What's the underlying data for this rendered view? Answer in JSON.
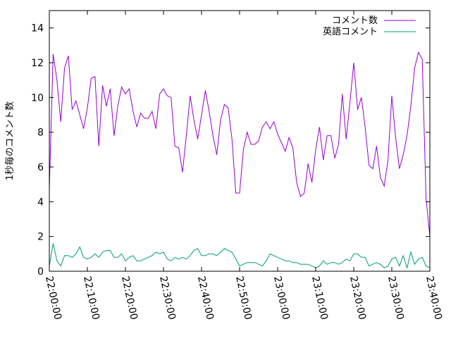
{
  "chart_data": {
    "type": "line",
    "title": "",
    "xlabel": "",
    "ylabel": "1秒毎のコメント数",
    "xlim": [
      "22:00:00",
      "23:40:00"
    ],
    "ylim": [
      0,
      15
    ],
    "yticks": [
      0,
      2,
      4,
      6,
      8,
      10,
      12,
      14
    ],
    "xticks": [
      "22:00:00",
      "22:10:00",
      "22:20:00",
      "22:30:00",
      "22:40:00",
      "22:50:00",
      "23:00:00",
      "23:10:00",
      "23:20:00",
      "23:30:00",
      "23:40:00"
    ],
    "grid": false,
    "legend_position": "top-right",
    "series": [
      {
        "name": "コメント数",
        "color": "#9400d3",
        "points": [
          [
            "22:00:00",
            4.7
          ],
          [
            "22:01:00",
            12.5
          ],
          [
            "22:02:00",
            11.0
          ],
          [
            "22:03:00",
            8.6
          ],
          [
            "22:04:00",
            11.7
          ],
          [
            "22:05:00",
            12.4
          ],
          [
            "22:06:00",
            9.3
          ],
          [
            "22:07:00",
            9.8
          ],
          [
            "22:08:00",
            9.0
          ],
          [
            "22:09:00",
            8.2
          ],
          [
            "22:10:00",
            9.4
          ],
          [
            "22:11:00",
            11.1
          ],
          [
            "22:12:00",
            11.2
          ],
          [
            "22:13:00",
            7.2
          ],
          [
            "22:14:00",
            10.7
          ],
          [
            "22:15:00",
            9.5
          ],
          [
            "22:16:00",
            10.5
          ],
          [
            "22:17:00",
            7.8
          ],
          [
            "22:18:00",
            9.5
          ],
          [
            "22:19:00",
            10.6
          ],
          [
            "22:20:00",
            10.2
          ],
          [
            "22:21:00",
            10.5
          ],
          [
            "22:22:00",
            9.2
          ],
          [
            "22:23:00",
            8.3
          ],
          [
            "22:24:00",
            9.1
          ],
          [
            "22:25:00",
            8.8
          ],
          [
            "22:26:00",
            8.8
          ],
          [
            "22:27:00",
            9.2
          ],
          [
            "22:28:00",
            8.2
          ],
          [
            "22:29:00",
            10.2
          ],
          [
            "22:30:00",
            10.5
          ],
          [
            "22:31:00",
            10.1
          ],
          [
            "22:32:00",
            10.0
          ],
          [
            "22:33:00",
            7.2
          ],
          [
            "22:34:00",
            7.1
          ],
          [
            "22:35:00",
            5.7
          ],
          [
            "22:36:00",
            7.8
          ],
          [
            "22:37:00",
            10.1
          ],
          [
            "22:38:00",
            8.7
          ],
          [
            "22:39:00",
            7.6
          ],
          [
            "22:40:00",
            9.0
          ],
          [
            "22:41:00",
            10.4
          ],
          [
            "22:42:00",
            9.2
          ],
          [
            "22:43:00",
            7.8
          ],
          [
            "22:44:00",
            6.7
          ],
          [
            "22:45:00",
            8.7
          ],
          [
            "22:46:00",
            9.6
          ],
          [
            "22:47:00",
            9.4
          ],
          [
            "22:48:00",
            7.6
          ],
          [
            "22:49:00",
            4.5
          ],
          [
            "22:50:00",
            4.5
          ],
          [
            "22:51:00",
            7.0
          ],
          [
            "22:52:00",
            8.0
          ],
          [
            "22:53:00",
            7.3
          ],
          [
            "22:54:00",
            7.3
          ],
          [
            "22:55:00",
            7.5
          ],
          [
            "22:56:00",
            8.3
          ],
          [
            "22:57:00",
            8.6
          ],
          [
            "22:58:00",
            8.2
          ],
          [
            "22:59:00",
            8.6
          ],
          [
            "23:00:00",
            7.9
          ],
          [
            "23:01:00",
            7.4
          ],
          [
            "23:02:00",
            6.9
          ],
          [
            "23:03:00",
            7.7
          ],
          [
            "23:04:00",
            7.1
          ],
          [
            "23:05:00",
            5.1
          ],
          [
            "23:06:00",
            4.3
          ],
          [
            "23:07:00",
            4.5
          ],
          [
            "23:08:00",
            6.2
          ],
          [
            "23:09:00",
            5.1
          ],
          [
            "23:10:00",
            7.0
          ],
          [
            "23:11:00",
            8.3
          ],
          [
            "23:12:00",
            6.4
          ],
          [
            "23:13:00",
            7.8
          ],
          [
            "23:14:00",
            7.8
          ],
          [
            "23:15:00",
            6.5
          ],
          [
            "23:16:00",
            7.3
          ],
          [
            "23:17:00",
            10.2
          ],
          [
            "23:18:00",
            7.6
          ],
          [
            "23:19:00",
            9.7
          ],
          [
            "23:20:00",
            12.0
          ],
          [
            "23:21:00",
            9.3
          ],
          [
            "23:22:00",
            10.0
          ],
          [
            "23:23:00",
            8.3
          ],
          [
            "23:24:00",
            6.1
          ],
          [
            "23:25:00",
            5.9
          ],
          [
            "23:26:00",
            7.2
          ],
          [
            "23:27:00",
            5.4
          ],
          [
            "23:28:00",
            4.9
          ],
          [
            "23:29:00",
            6.4
          ],
          [
            "23:30:00",
            10.1
          ],
          [
            "23:31:00",
            7.7
          ],
          [
            "23:32:00",
            5.9
          ],
          [
            "23:33:00",
            6.7
          ],
          [
            "23:34:00",
            7.8
          ],
          [
            "23:35:00",
            9.5
          ],
          [
            "23:36:00",
            11.7
          ],
          [
            "23:37:00",
            12.6
          ],
          [
            "23:38:00",
            12.2
          ],
          [
            "23:39:00",
            4.2
          ],
          [
            "23:40:00",
            2.0
          ]
        ]
      },
      {
        "name": "英語コメント",
        "color": "#009e73",
        "points": [
          [
            "22:00:00",
            0.3
          ],
          [
            "22:01:00",
            1.6
          ],
          [
            "22:02:00",
            0.6
          ],
          [
            "22:03:00",
            0.3
          ],
          [
            "22:04:00",
            0.9
          ],
          [
            "22:05:00",
            0.9
          ],
          [
            "22:06:00",
            0.8
          ],
          [
            "22:07:00",
            1.0
          ],
          [
            "22:08:00",
            1.4
          ],
          [
            "22:09:00",
            0.8
          ],
          [
            "22:10:00",
            0.7
          ],
          [
            "22:11:00",
            0.8
          ],
          [
            "22:12:00",
            1.0
          ],
          [
            "22:13:00",
            0.8
          ],
          [
            "22:14:00",
            1.1
          ],
          [
            "22:15:00",
            1.2
          ],
          [
            "22:16:00",
            1.2
          ],
          [
            "22:17:00",
            0.8
          ],
          [
            "22:18:00",
            0.8
          ],
          [
            "22:19:00",
            1.0
          ],
          [
            "22:20:00",
            0.6
          ],
          [
            "22:21:00",
            0.8
          ],
          [
            "22:22:00",
            0.9
          ],
          [
            "22:23:00",
            0.6
          ],
          [
            "22:24:00",
            0.6
          ],
          [
            "22:25:00",
            0.7
          ],
          [
            "22:26:00",
            0.8
          ],
          [
            "22:27:00",
            0.9
          ],
          [
            "22:28:00",
            1.1
          ],
          [
            "22:29:00",
            1.0
          ],
          [
            "22:30:00",
            1.1
          ],
          [
            "22:31:00",
            0.7
          ],
          [
            "22:32:00",
            0.6
          ],
          [
            "22:33:00",
            0.8
          ],
          [
            "22:34:00",
            0.7
          ],
          [
            "22:35:00",
            0.8
          ],
          [
            "22:36:00",
            0.7
          ],
          [
            "22:37:00",
            0.9
          ],
          [
            "22:38:00",
            1.2
          ],
          [
            "22:39:00",
            1.3
          ],
          [
            "22:40:00",
            0.9
          ],
          [
            "22:41:00",
            0.9
          ],
          [
            "22:42:00",
            1.0
          ],
          [
            "22:43:00",
            1.0
          ],
          [
            "22:44:00",
            0.9
          ],
          [
            "22:45:00",
            1.1
          ],
          [
            "22:46:00",
            1.3
          ],
          [
            "22:47:00",
            1.2
          ],
          [
            "22:48:00",
            1.1
          ],
          [
            "22:49:00",
            0.7
          ],
          [
            "22:50:00",
            0.3
          ],
          [
            "22:51:00",
            0.4
          ],
          [
            "22:52:00",
            0.5
          ],
          [
            "22:53:00",
            0.5
          ],
          [
            "22:54:00",
            0.5
          ],
          [
            "22:55:00",
            0.4
          ],
          [
            "22:56:00",
            0.3
          ],
          [
            "22:57:00",
            0.6
          ],
          [
            "22:58:00",
            1.0
          ],
          [
            "22:59:00",
            0.9
          ],
          [
            "23:00:00",
            0.8
          ],
          [
            "23:01:00",
            0.7
          ],
          [
            "23:02:00",
            0.6
          ],
          [
            "23:03:00",
            0.6
          ],
          [
            "23:04:00",
            0.5
          ],
          [
            "23:05:00",
            0.5
          ],
          [
            "23:06:00",
            0.4
          ],
          [
            "23:07:00",
            0.4
          ],
          [
            "23:08:00",
            0.4
          ],
          [
            "23:09:00",
            0.3
          ],
          [
            "23:10:00",
            0.2
          ],
          [
            "23:11:00",
            0.3
          ],
          [
            "23:12:00",
            0.6
          ],
          [
            "23:13:00",
            0.4
          ],
          [
            "23:14:00",
            0.5
          ],
          [
            "23:15:00",
            0.5
          ],
          [
            "23:16:00",
            0.4
          ],
          [
            "23:17:00",
            0.5
          ],
          [
            "23:18:00",
            0.7
          ],
          [
            "23:19:00",
            0.6
          ],
          [
            "23:20:00",
            1.0
          ],
          [
            "23:21:00",
            1.0
          ],
          [
            "23:22:00",
            0.8
          ],
          [
            "23:23:00",
            0.8
          ],
          [
            "23:24:00",
            0.3
          ],
          [
            "23:25:00",
            0.4
          ],
          [
            "23:26:00",
            0.5
          ],
          [
            "23:27:00",
            0.4
          ],
          [
            "23:28:00",
            0.2
          ],
          [
            "23:29:00",
            0.3
          ],
          [
            "23:30:00",
            0.7
          ],
          [
            "23:31:00",
            0.8
          ],
          [
            "23:32:00",
            0.3
          ],
          [
            "23:33:00",
            0.9
          ],
          [
            "23:34:00",
            0.2
          ],
          [
            "23:35:00",
            1.1
          ],
          [
            "23:36:00",
            0.4
          ],
          [
            "23:37:00",
            0.7
          ],
          [
            "23:38:00",
            0.8
          ],
          [
            "23:39:00",
            0.3
          ],
          [
            "23:40:00",
            0.2
          ]
        ]
      }
    ]
  }
}
